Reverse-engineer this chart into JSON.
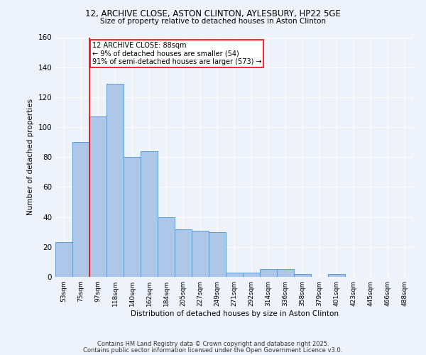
{
  "title1": "12, ARCHIVE CLOSE, ASTON CLINTON, AYLESBURY, HP22 5GE",
  "title2": "Size of property relative to detached houses in Aston Clinton",
  "xlabel": "Distribution of detached houses by size in Aston Clinton",
  "ylabel": "Number of detached properties",
  "categories": [
    "53sqm",
    "75sqm",
    "97sqm",
    "118sqm",
    "140sqm",
    "162sqm",
    "184sqm",
    "205sqm",
    "227sqm",
    "249sqm",
    "271sqm",
    "292sqm",
    "314sqm",
    "336sqm",
    "358sqm",
    "379sqm",
    "401sqm",
    "423sqm",
    "445sqm",
    "466sqm",
    "488sqm"
  ],
  "values": [
    23,
    90,
    107,
    129,
    80,
    84,
    40,
    32,
    31,
    30,
    3,
    3,
    5,
    5,
    2,
    0,
    2,
    0,
    0,
    0,
    0
  ],
  "bar_color": "#aec6e8",
  "bar_edge_color": "#5b9bd5",
  "red_line_x": 1.5,
  "annotation_text": "12 ARCHIVE CLOSE: 88sqm\n← 9% of detached houses are smaller (54)\n91% of semi-detached houses are larger (573) →",
  "annotation_box_color": "white",
  "annotation_box_edge": "red",
  "footer1": "Contains HM Land Registry data © Crown copyright and database right 2025.",
  "footer2": "Contains public sector information licensed under the Open Government Licence v3.0.",
  "background_color": "#eef2fa",
  "grid_color": "white",
  "ylim": [
    0,
    160
  ],
  "yticks": [
    0,
    20,
    40,
    60,
    80,
    100,
    120,
    140,
    160
  ]
}
